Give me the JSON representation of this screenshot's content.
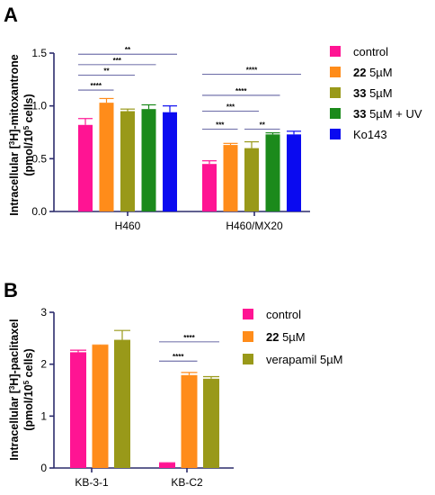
{
  "colors": {
    "control": "#ff1493",
    "c22": "#ff8c1a",
    "c33": "#999919",
    "c33uv": "#1b8a1b",
    "ko143": "#0a0af0",
    "verapamil": "#999919",
    "axis": "#2c2c6c"
  },
  "chart_data": [
    {
      "panel": "A",
      "type": "bar",
      "ylabel": "Intracellular [3H]-mitoxantrone (pmol/105 cells)",
      "ylabel_parts": {
        "line1_pre": "Intracellular [",
        "line1_sup": "3",
        "line1_post": "H]-mitoxantrone",
        "line2_pre": "(pmol/10",
        "line2_sup": "5",
        "line2_post": " cells)"
      },
      "ylim": [
        0,
        1.5
      ],
      "yticks": [
        "0.0",
        "0.5",
        "1.0",
        "1.5"
      ],
      "categories": [
        "H460",
        "H460/MX20"
      ],
      "legend": [
        {
          "bold": "",
          "text": "control",
          "color_key": "control"
        },
        {
          "bold": "22",
          "text": " 5µM",
          "color_key": "c22"
        },
        {
          "bold": "33",
          "text": " 5µM",
          "color_key": "c33"
        },
        {
          "bold": "33",
          "text": " 5µM + UV",
          "color_key": "c33uv"
        },
        {
          "bold": "",
          "text": "Ko143",
          "color_key": "ko143"
        }
      ],
      "series": [
        {
          "color_key": "control",
          "values": [
            0.82,
            0.45
          ],
          "errors": [
            0.06,
            0.03
          ]
        },
        {
          "color_key": "c22",
          "values": [
            1.03,
            0.63
          ],
          "errors": [
            0.04,
            0.015
          ]
        },
        {
          "color_key": "c33",
          "values": [
            0.95,
            0.6
          ],
          "errors": [
            0.02,
            0.06
          ]
        },
        {
          "color_key": "c33uv",
          "values": [
            0.97,
            0.73
          ],
          "errors": [
            0.04,
            0.015
          ]
        },
        {
          "color_key": "ko143",
          "values": [
            0.94,
            0.73
          ],
          "errors": [
            0.06,
            0.03
          ]
        }
      ],
      "significance": [
        {
          "cat": 0,
          "from": 0,
          "to": 4,
          "y": 1.49,
          "label": "**"
        },
        {
          "cat": 0,
          "from": 0,
          "to": 3,
          "y": 1.39,
          "label": "***"
        },
        {
          "cat": 0,
          "from": 0,
          "to": 2,
          "y": 1.29,
          "label": "**"
        },
        {
          "cat": 0,
          "from": 0,
          "to": 1,
          "y": 1.15,
          "label": "****"
        },
        {
          "cat": 1,
          "from": 0,
          "to": 4,
          "y": 1.3,
          "label": "****"
        },
        {
          "cat": 1,
          "from": 0,
          "to": 3,
          "y": 1.1,
          "label": "****"
        },
        {
          "cat": 1,
          "from": 0,
          "to": 2,
          "y": 0.95,
          "label": "***"
        },
        {
          "cat": 1,
          "from": 0,
          "to": 1,
          "y": 0.78,
          "label": "***"
        },
        {
          "cat": 1,
          "from": 2,
          "to": 3,
          "y": 0.78,
          "label": "**"
        }
      ]
    },
    {
      "panel": "B",
      "type": "bar",
      "ylabel": "Intracellular [3H]-paclitaxel (pmol/105 cells)",
      "ylabel_parts": {
        "line1_pre": "Intracellular [",
        "line1_sup": "3",
        "line1_post": "H]-paclitaxel",
        "line2_pre": "(pmol/10",
        "line2_sup": "5",
        "line2_post": " cells)"
      },
      "ylim": [
        0,
        3
      ],
      "yticks": [
        "0",
        "1",
        "2",
        "3"
      ],
      "categories": [
        "KB-3-1",
        "KB-C2"
      ],
      "legend": [
        {
          "bold": "",
          "text": "control",
          "color_key": "control"
        },
        {
          "bold": "22",
          "text": " 5µM",
          "color_key": "c22"
        },
        {
          "bold": "",
          "text": "verapamil 5µM",
          "color_key": "verapamil"
        }
      ],
      "series": [
        {
          "color_key": "control",
          "values": [
            2.23,
            0.09
          ],
          "errors": [
            0.04,
            0.01
          ]
        },
        {
          "color_key": "c22",
          "values": [
            2.36,
            1.79
          ],
          "errors": [
            0.01,
            0.05
          ]
        },
        {
          "color_key": "verapamil",
          "values": [
            2.47,
            1.72
          ],
          "errors": [
            0.18,
            0.04
          ]
        }
      ],
      "significance": [
        {
          "cat": 1,
          "from": 0,
          "to": 2,
          "y": 2.43,
          "label": "****"
        },
        {
          "cat": 1,
          "from": 0,
          "to": 1,
          "y": 2.06,
          "label": "****"
        }
      ]
    }
  ]
}
